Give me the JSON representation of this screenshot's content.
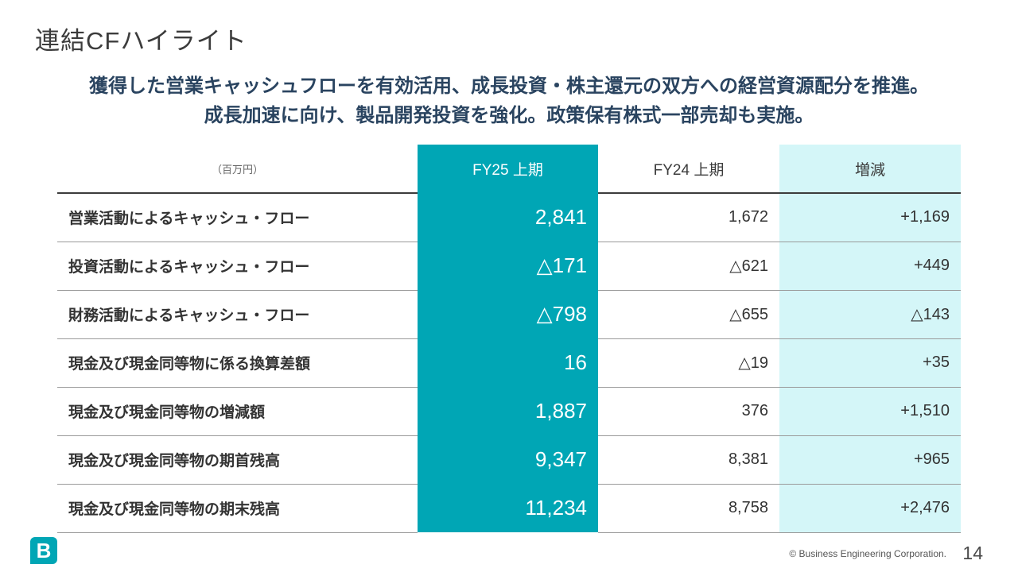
{
  "slide": {
    "title": "連結CFハイライト",
    "subtitle_line1": "獲得した営業キャッシュフローを有効活用、成長投資・株主還元の双方への経営資源配分を推進。",
    "subtitle_line2": "成長加速に向け、製品開発投資を強化。政策保有株式一部売却も実施。"
  },
  "table": {
    "unit_label": "（百万円）",
    "columns": [
      "FY25 上期",
      "FY24 上期",
      "増減"
    ],
    "rows": [
      {
        "label": "営業活動によるキャッシュ・フロー",
        "fy25": "2,841",
        "fy24": "1,672",
        "diff": "+1,169"
      },
      {
        "label": "投資活動によるキャッシュ・フロー",
        "fy25": "△171",
        "fy24": "△621",
        "diff": "+449"
      },
      {
        "label": "財務活動によるキャッシュ・フロー",
        "fy25": "△798",
        "fy24": "△655",
        "diff": "△143"
      },
      {
        "label": "現金及び現金同等物に係る換算差額",
        "fy25": "16",
        "fy24": "△19",
        "diff": "+35"
      },
      {
        "label": "現金及び現金同等物の増減額",
        "fy25": "1,887",
        "fy24": "376",
        "diff": "+1,510"
      },
      {
        "label": "現金及び現金同等物の期首残高",
        "fy25": "9,347",
        "fy24": "8,381",
        "diff": "+965"
      },
      {
        "label": "現金及び現金同等物の期末残高",
        "fy25": "11,234",
        "fy24": "8,758",
        "diff": "+2,476"
      }
    ]
  },
  "footer": {
    "logo_text": "B",
    "copyright": "© Business Engineering Corporation.",
    "page_number": "14"
  },
  "colors": {
    "accent_teal": "#00a6b5",
    "light_cyan": "#d4f6f8",
    "subtitle_navy": "#2a4460"
  }
}
